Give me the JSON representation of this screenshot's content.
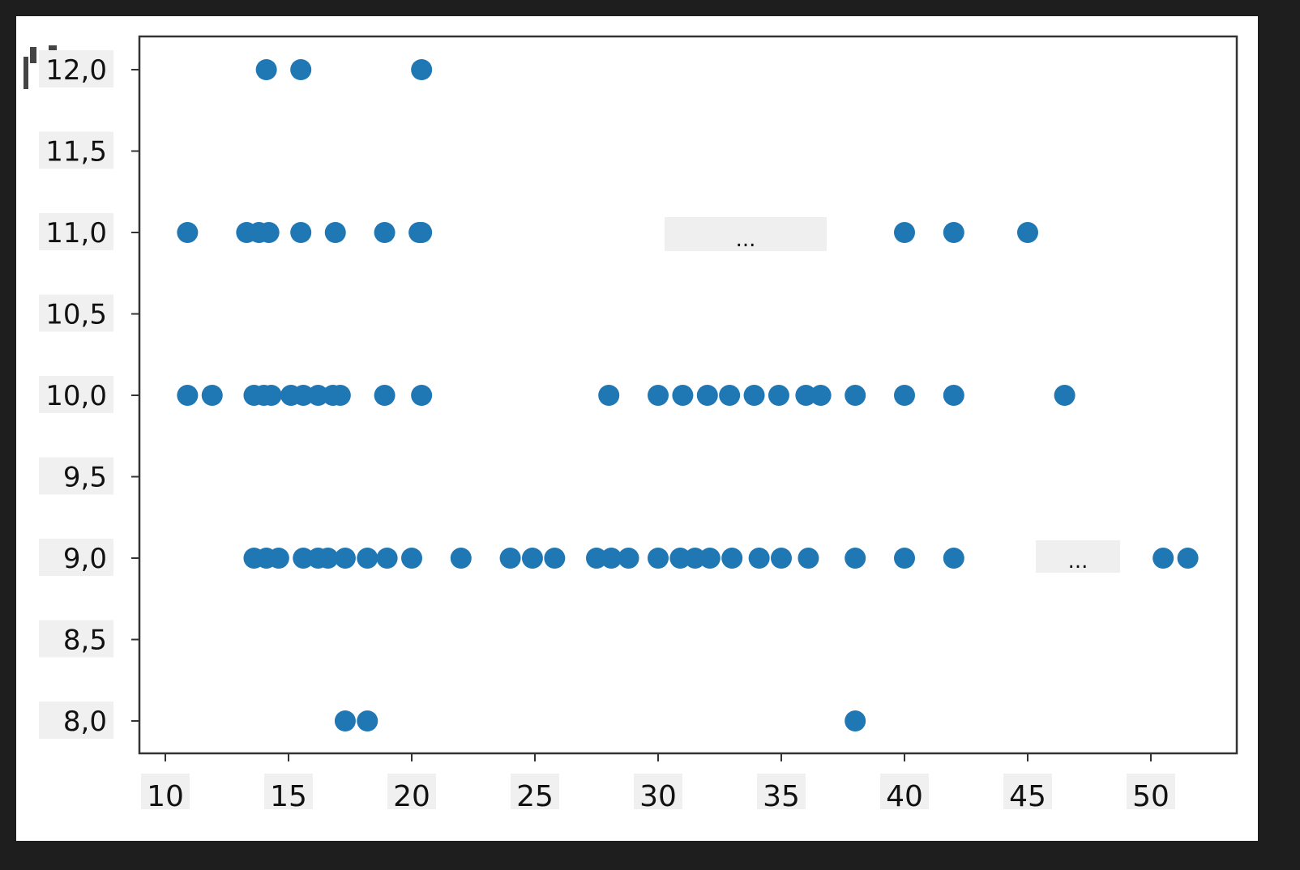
{
  "chart_data": {
    "type": "scatter",
    "title": "",
    "xlabel": "",
    "ylabel": "",
    "xlim": [
      9,
      53.5
    ],
    "ylim": [
      7.8,
      12.2
    ],
    "grid": false,
    "color": "#1f77b4",
    "x_ticks": [
      "10",
      "15",
      "20",
      "25",
      "30",
      "35",
      "40",
      "45",
      "50"
    ],
    "x_tick_values": [
      10,
      15,
      20,
      25,
      30,
      35,
      40,
      45,
      50
    ],
    "y_ticks": [
      "12,0",
      "11,5",
      "11,0",
      "10,5",
      "10,0",
      "9,5",
      "9,0",
      "8,5",
      "8,0"
    ],
    "y_tick_values": [
      12,
      11.5,
      11,
      10.5,
      10,
      9.5,
      9,
      8.5,
      8
    ],
    "annotations": [
      "...",
      "..."
    ],
    "points": [
      [
        14.1,
        12
      ],
      [
        15.5,
        12
      ],
      [
        20.4,
        12
      ],
      [
        10.9,
        11
      ],
      [
        13.3,
        11
      ],
      [
        13.8,
        11
      ],
      [
        14.2,
        11
      ],
      [
        15.5,
        11
      ],
      [
        16.9,
        11
      ],
      [
        18.9,
        11
      ],
      [
        20.3,
        11
      ],
      [
        20.4,
        11
      ],
      [
        40,
        11
      ],
      [
        42,
        11
      ],
      [
        45,
        11
      ],
      [
        10.9,
        10
      ],
      [
        11.9,
        10
      ],
      [
        13.6,
        10
      ],
      [
        14,
        10
      ],
      [
        14.3,
        10
      ],
      [
        15.1,
        10
      ],
      [
        15.6,
        10
      ],
      [
        16.2,
        10
      ],
      [
        16.8,
        10
      ],
      [
        17.1,
        10
      ],
      [
        18.9,
        10
      ],
      [
        20.4,
        10
      ],
      [
        28,
        10
      ],
      [
        30,
        10
      ],
      [
        31,
        10
      ],
      [
        32,
        10
      ],
      [
        32.9,
        10
      ],
      [
        33.9,
        10
      ],
      [
        34.9,
        10
      ],
      [
        36,
        10
      ],
      [
        36.6,
        10
      ],
      [
        38,
        10
      ],
      [
        40,
        10
      ],
      [
        42,
        10
      ],
      [
        46.5,
        10
      ],
      [
        13.6,
        9
      ],
      [
        14.1,
        9
      ],
      [
        14.6,
        9
      ],
      [
        15.6,
        9
      ],
      [
        16.2,
        9
      ],
      [
        16.6,
        9
      ],
      [
        17.3,
        9
      ],
      [
        18.2,
        9
      ],
      [
        19,
        9
      ],
      [
        20,
        9
      ],
      [
        22,
        9
      ],
      [
        24,
        9
      ],
      [
        24.9,
        9
      ],
      [
        25.8,
        9
      ],
      [
        27.5,
        9
      ],
      [
        28.1,
        9
      ],
      [
        28.8,
        9
      ],
      [
        30,
        9
      ],
      [
        30.9,
        9
      ],
      [
        31.5,
        9
      ],
      [
        32.1,
        9
      ],
      [
        33,
        9
      ],
      [
        34.1,
        9
      ],
      [
        35,
        9
      ],
      [
        36.1,
        9
      ],
      [
        38,
        9
      ],
      [
        40,
        9
      ],
      [
        42,
        9
      ],
      [
        50.5,
        9
      ],
      [
        51.5,
        9
      ],
      [
        17.3,
        8
      ],
      [
        18.2,
        8
      ],
      [
        38,
        8
      ]
    ]
  }
}
